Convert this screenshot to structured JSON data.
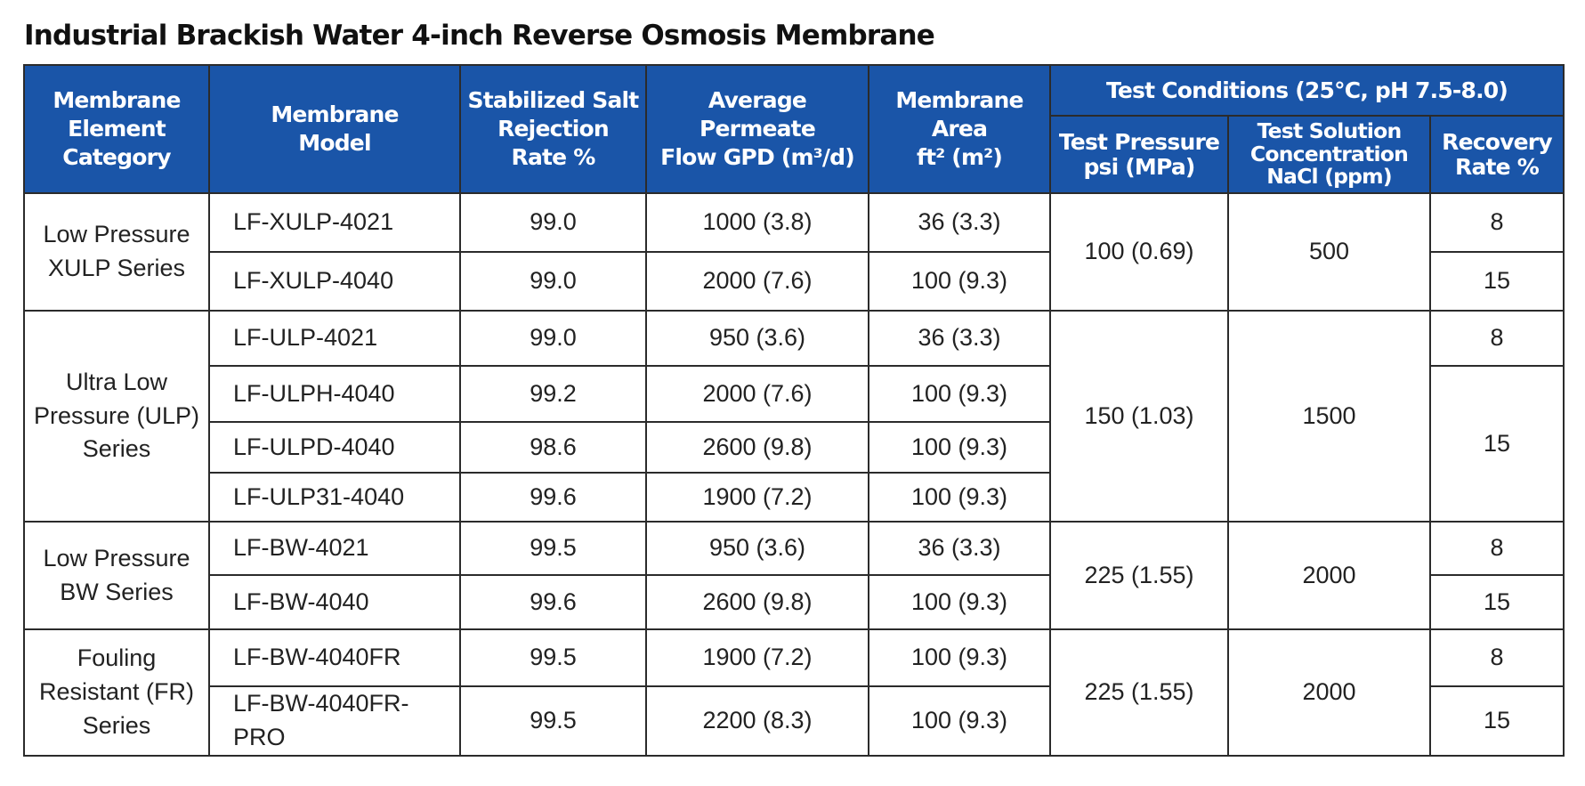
{
  "title": "Industrial Brackish Water 4-inch Reverse Osmosis Membrane",
  "headers": {
    "category": [
      "Membrane",
      "Element",
      "Category"
    ],
    "model": [
      "Membrane",
      "Model"
    ],
    "rejection": [
      "Stabilized Salt",
      "Rejection",
      "Rate %"
    ],
    "flow": [
      "Average Permeate",
      "Flow GPD (m³/d)"
    ],
    "area": [
      "Membrane Area",
      "ft² (m²)"
    ],
    "test_conditions": "Test Conditions (25°C, pH 7.5-8.0)",
    "pressure": [
      "Test Pressure",
      "psi (MPa)"
    ],
    "concentration": [
      "Test Solution",
      "Concentration",
      "NaCl (ppm)"
    ],
    "recovery": [
      "Recovery",
      "Rate %"
    ]
  },
  "groups": [
    {
      "category": [
        "Low Pressure",
        "XULP Series"
      ],
      "pressure": "100 (0.69)",
      "concentration": "500",
      "rows": [
        {
          "model": "LF-XULP-4021",
          "rejection": "99.0",
          "flow": "1000 (3.8)",
          "area": "36 (3.3)",
          "recovery": "8"
        },
        {
          "model": "LF-XULP-4040",
          "rejection": "99.0",
          "flow": "2000 (7.6)",
          "area": "100 (9.3)",
          "recovery": "15"
        }
      ]
    },
    {
      "category": [
        "Ultra Low",
        "Pressure (ULP)",
        "Series"
      ],
      "pressure": "150 (1.03)",
      "concentration": "1500",
      "recovery_8": "8",
      "recovery_15": "15",
      "rows": [
        {
          "model": "LF-ULP-4021",
          "rejection": "99.0",
          "flow": "950 (3.6)",
          "area": "36 (3.3)"
        },
        {
          "model": "LF-ULPH-4040",
          "rejection": "99.2",
          "flow": "2000 (7.6)",
          "area": "100 (9.3)"
        },
        {
          "model": "LF-ULPD-4040",
          "rejection": "98.6",
          "flow": "2600 (9.8)",
          "area": "100 (9.3)"
        },
        {
          "model": "LF-ULP31-4040",
          "rejection": "99.6",
          "flow": "1900 (7.2)",
          "area": "100 (9.3)"
        }
      ]
    },
    {
      "category": [
        "Low Pressure",
        "BW Series"
      ],
      "pressure": "225 (1.55)",
      "concentration": "2000",
      "rows": [
        {
          "model": "LF-BW-4021",
          "rejection": "99.5",
          "flow": "950 (3.6)",
          "area": "36 (3.3)",
          "recovery": "8"
        },
        {
          "model": "LF-BW-4040",
          "rejection": "99.6",
          "flow": "2600 (9.8)",
          "area": "100 (9.3)",
          "recovery": "15"
        }
      ]
    },
    {
      "category": [
        "Fouling",
        "Resistant (FR)",
        "Series"
      ],
      "pressure": "225 (1.55)",
      "concentration": "2000",
      "rows": [
        {
          "model": "LF-BW-4040FR",
          "rejection": "99.5",
          "flow": "1900 (7.2)",
          "area": "100 (9.3)",
          "recovery": "8"
        },
        {
          "model": "LF-BW-4040FR-PRO",
          "rejection": "99.5",
          "flow": "2200 (8.3)",
          "area": "100 (9.3)",
          "recovery": "15"
        }
      ]
    }
  ],
  "colors": {
    "header_bg": "#1a55a8",
    "header_text": "#ffffff",
    "border": "#2b2b2b"
  }
}
